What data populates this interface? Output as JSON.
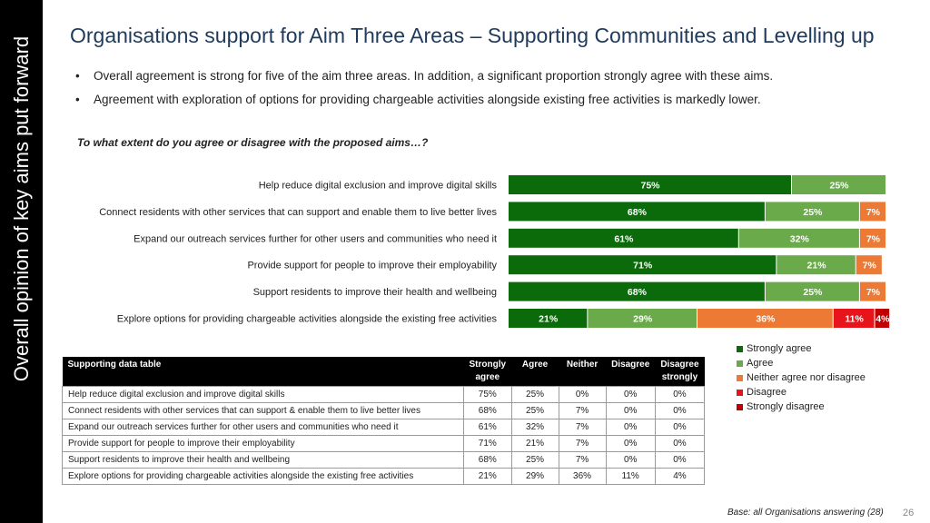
{
  "side_title": "Overall opinion of key aims put forward",
  "title": "Organisations support for Aim Three Areas – Supporting Communities and Levelling up",
  "bullets": [
    "Overall agreement is strong for five of the aim three areas. In addition, a significant proportion strongly agree with these aims.",
    "Agreement with exploration of options for providing chargeable activities alongside existing free activities is markedly lower."
  ],
  "bullet_symbol": "•",
  "question": "To what extent do you agree or disagree with the proposed aims…?",
  "colors": {
    "strongly_agree": "#0b6b0b",
    "agree": "#6aaa4a",
    "neither": "#ec7a35",
    "disagree": "#e8141b",
    "disagree_strongly": "#c00000"
  },
  "chart_data": {
    "type": "bar",
    "orientation": "horizontal",
    "stacked": true,
    "categories": [
      "Help reduce digital exclusion and improve digital skills",
      "Connect residents with other services that can support and enable them to live better lives",
      "Expand our outreach services further for other users and communities who need it",
      "Provide support for people to improve their employability",
      "Support residents to improve their health and wellbeing",
      "Explore options for providing chargeable activities alongside the existing free activities"
    ],
    "series": [
      {
        "name": "Strongly agree",
        "values": [
          75,
          68,
          61,
          71,
          68,
          21
        ]
      },
      {
        "name": "Agree",
        "values": [
          25,
          25,
          32,
          21,
          25,
          29
        ]
      },
      {
        "name": "Neither agree nor disagree",
        "values": [
          0,
          7,
          7,
          7,
          7,
          36
        ]
      },
      {
        "name": "Disagree",
        "values": [
          0,
          0,
          0,
          0,
          0,
          11
        ]
      },
      {
        "name": "Strongly disagree",
        "values": [
          0,
          0,
          0,
          0,
          0,
          4
        ]
      }
    ],
    "unit": "%",
    "xlim": [
      0,
      100
    ],
    "legend_position": "right"
  },
  "table": {
    "headers": [
      "Supporting data table",
      "Strongly agree",
      "Agree",
      "Neither",
      "Disagree",
      "Disagree strongly"
    ],
    "rows": [
      [
        "Help reduce digital exclusion and improve digital skills",
        "75%",
        "25%",
        "0%",
        "0%",
        "0%"
      ],
      [
        "Connect residents with other services that can support & enable them to live better lives",
        "68%",
        "25%",
        "7%",
        "0%",
        "0%"
      ],
      [
        "Expand our outreach services further for other users and communities who need it",
        "61%",
        "32%",
        "7%",
        "0%",
        "0%"
      ],
      [
        "Provide support for people to improve their employability",
        "71%",
        "21%",
        "7%",
        "0%",
        "0%"
      ],
      [
        "Support residents to improve their health and wellbeing",
        "68%",
        "25%",
        "7%",
        "0%",
        "0%"
      ],
      [
        "Explore options for providing chargeable activities alongside the existing free activities",
        "21%",
        "29%",
        "36%",
        "11%",
        "4%"
      ]
    ]
  },
  "legend": [
    {
      "label": "Strongly agree",
      "color_key": "strongly_agree"
    },
    {
      "label": "Agree",
      "color_key": "agree"
    },
    {
      "label": "Neither agree nor disagree",
      "color_key": "neither"
    },
    {
      "label": "Disagree",
      "color_key": "disagree"
    },
    {
      "label": "Strongly disagree",
      "color_key": "disagree_strongly"
    }
  ],
  "footer": {
    "base": "Base: all Organisations answering (28)",
    "page_number": "26"
  }
}
